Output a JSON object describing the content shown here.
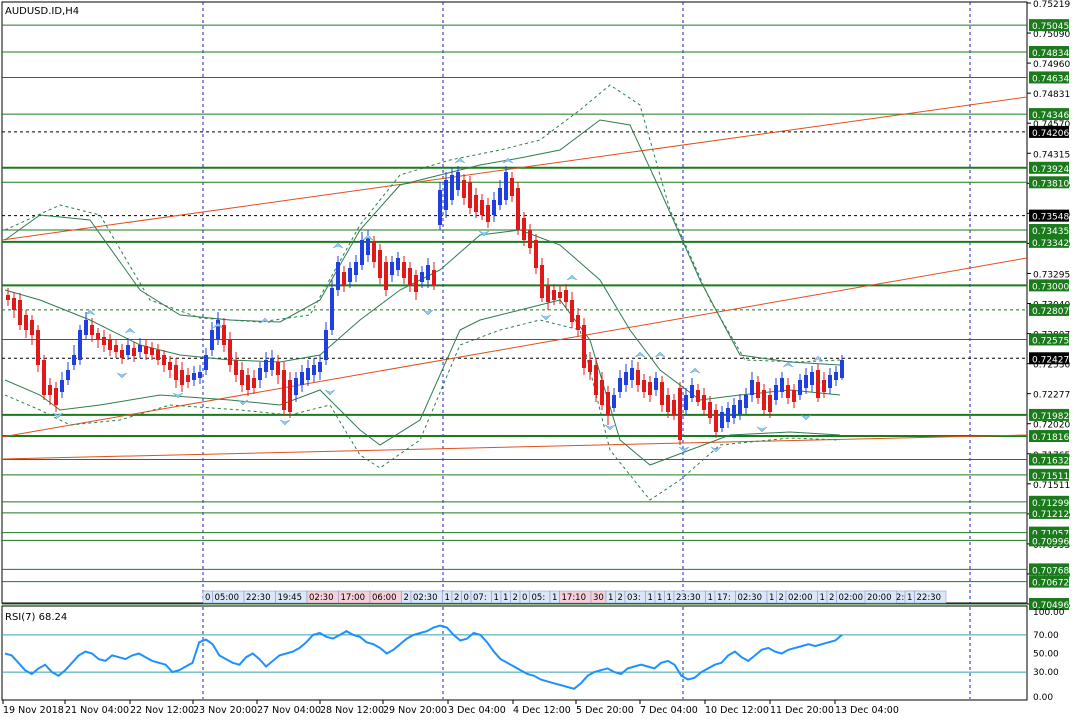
{
  "symbol": "AUDUSD.ID,H4",
  "indicator_label": "RSI(7) 68.24",
  "price_axis": {
    "top_labels": [
      "0.75219",
      "0.75090",
      "0.74960",
      "0.74831",
      "0.74570",
      "0.74315",
      "0.74066",
      "0.73810",
      "0.73549",
      "0.73295",
      "0.73040",
      "0.72807",
      "0.72530",
      "0.72277",
      "0.72020",
      "0.71765",
      "0.71511",
      "0.71250",
      "0.70995",
      "0.70740",
      "0.70496"
    ]
  },
  "levels": [
    {
      "value": "0.75045",
      "style": "solid",
      "color": "#1b7a1b"
    },
    {
      "value": "0.74834",
      "style": "solid",
      "color": "#1b7a1b"
    },
    {
      "value": "0.74634",
      "style": "solid",
      "color": "#1b7a1b"
    },
    {
      "value": "0.74346",
      "style": "solid",
      "color": "#1b7a1b"
    },
    {
      "value": "0.74206",
      "style": "dashed",
      "color": "#000000"
    },
    {
      "value": "0.73924",
      "style": "thick",
      "color": "#1b7a1b"
    },
    {
      "value": "0.73810",
      "style": "solid",
      "color": "#1b7a1b"
    },
    {
      "value": "0.73548",
      "style": "dashed",
      "color": "#000000"
    },
    {
      "value": "0.73435",
      "style": "solid",
      "color": "#1b7a1b"
    },
    {
      "value": "0.73342",
      "style": "thick",
      "color": "#1b7a1b"
    },
    {
      "value": "0.73000",
      "style": "thick",
      "color": "#1b7a1b"
    },
    {
      "value": "0.72807",
      "style": "dashed",
      "color": "#1b7a1b"
    },
    {
      "value": "0.72575",
      "style": "solid",
      "color": "#1b7a1b"
    },
    {
      "value": "0.72427",
      "style": "dashed",
      "color": "#000000"
    },
    {
      "value": "0.71982",
      "style": "thick",
      "color": "#1b7a1b"
    },
    {
      "value": "0.71816",
      "style": "thick",
      "color": "#1b7a1b"
    },
    {
      "value": "0.71632",
      "style": "solid",
      "color": "#1b7a1b"
    },
    {
      "value": "0.71511",
      "style": "solid",
      "color": "#1b7a1b"
    },
    {
      "value": "0.71299",
      "style": "solid",
      "color": "#1b7a1b"
    },
    {
      "value": "0.71212",
      "style": "solid",
      "color": "#1b7a1b"
    },
    {
      "value": "0.71057",
      "style": "solid",
      "color": "#1b7a1b"
    },
    {
      "value": "0.70996",
      "style": "solid",
      "color": "#1b7a1b"
    },
    {
      "value": "0.70768",
      "style": "solid",
      "color": "#1b7a1b"
    },
    {
      "value": "0.70672",
      "style": "solid",
      "color": "#1b7a1b"
    },
    {
      "value": "0.70496",
      "style": "solid",
      "color": "#1b7a1b"
    }
  ],
  "rsi_axis": [
    "100.00",
    "70.00",
    "50.00",
    "30.00",
    "0.00"
  ],
  "time_axis": [
    "19 Nov 2018",
    "21 Nov 04:00",
    "22 Nov 12:00",
    "23 Nov 20:00",
    "27 Nov 04:00",
    "28 Nov 12:00",
    "29 Nov 20:00",
    "3 Dec 04:00",
    "4 Dec 12:00",
    "5 Dec 20:00",
    "7 Dec 04:00",
    "10 Dec 12:00",
    "11 Dec 20:00",
    "13 Dec 04:00"
  ],
  "session_strip": [
    "0",
    "05:00",
    "22:30",
    "19:45",
    "02:30",
    "17:00",
    "06:00",
    "2",
    "02:30",
    "1",
    "2",
    "0",
    "07:",
    "1",
    "1",
    "2",
    "0",
    "05:",
    "1",
    "17:10",
    "30",
    "1",
    "2",
    "03:",
    "1",
    "1",
    "1",
    "23:30",
    "1",
    "17:",
    "02:30",
    "1",
    "2",
    "02:00",
    "1",
    "2",
    "02:00",
    "17:",
    "02:00",
    "20:00",
    "1",
    "22:30"
  ],
  "colors": {
    "bull_candle": "#1f3fe0",
    "bear_candle": "#e01818",
    "level_green": "#1b7a1b",
    "trend_line": "#e0501c",
    "bollinger": "#2e7d4e",
    "rsi_line": "#1e90ff",
    "grid_vertical": "#2020c0",
    "current_price_bg": "#000000"
  },
  "current_price": "0.72427"
}
